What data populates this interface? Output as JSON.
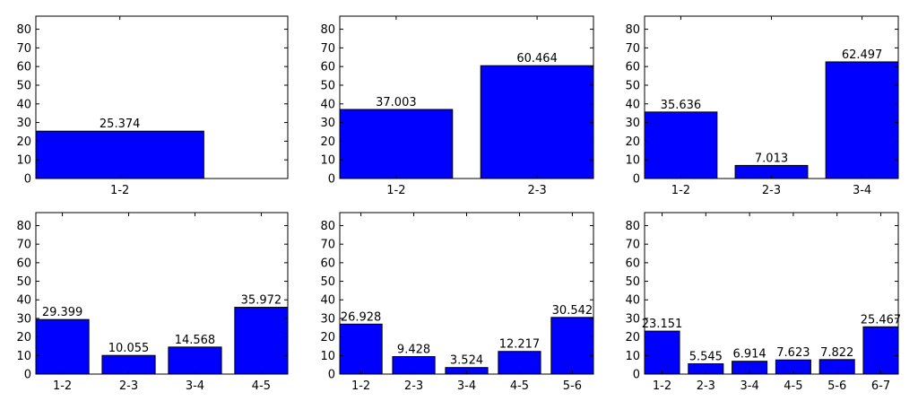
{
  "chart_data": [
    {
      "type": "bar",
      "categories": [
        "1-2"
      ],
      "values": [
        25.374
      ],
      "data_labels": [
        "25.374"
      ],
      "ylim": [
        0,
        87
      ],
      "yticks": [
        0,
        10,
        20,
        30,
        40,
        50,
        60,
        70,
        80
      ],
      "colors": {
        "bar": "#0000ff"
      },
      "grid": false
    },
    {
      "type": "bar",
      "categories": [
        "1-2",
        "2-3"
      ],
      "values": [
        37.003,
        60.464
      ],
      "data_labels": [
        "37.003",
        "60.464"
      ],
      "ylim": [
        0,
        87
      ],
      "yticks": [
        0,
        10,
        20,
        30,
        40,
        50,
        60,
        70,
        80
      ],
      "colors": {
        "bar": "#0000ff"
      },
      "grid": false
    },
    {
      "type": "bar",
      "categories": [
        "1-2",
        "2-3",
        "3-4"
      ],
      "values": [
        35.636,
        7.013,
        62.497
      ],
      "data_labels": [
        "35.636",
        "7.013",
        "62.497"
      ],
      "ylim": [
        0,
        87
      ],
      "yticks": [
        0,
        10,
        20,
        30,
        40,
        50,
        60,
        70,
        80
      ],
      "colors": {
        "bar": "#0000ff"
      },
      "grid": false
    },
    {
      "type": "bar",
      "categories": [
        "1-2",
        "2-3",
        "3-4",
        "4-5"
      ],
      "values": [
        29.399,
        10.055,
        14.568,
        35.972
      ],
      "data_labels": [
        "29.399",
        "10.055",
        "14.568",
        "35.972"
      ],
      "ylim": [
        0,
        87
      ],
      "yticks": [
        0,
        10,
        20,
        30,
        40,
        50,
        60,
        70,
        80
      ],
      "colors": {
        "bar": "#0000ff"
      },
      "grid": false
    },
    {
      "type": "bar",
      "categories": [
        "1-2",
        "2-3",
        "3-4",
        "4-5",
        "5-6"
      ],
      "values": [
        26.928,
        9.428,
        3.524,
        12.217,
        30.542
      ],
      "data_labels": [
        "26.928",
        "9.428",
        "3.524",
        "12.217",
        "30.542"
      ],
      "ylim": [
        0,
        87
      ],
      "yticks": [
        0,
        10,
        20,
        30,
        40,
        50,
        60,
        70,
        80
      ],
      "colors": {
        "bar": "#0000ff"
      },
      "grid": false
    },
    {
      "type": "bar",
      "categories": [
        "1-2",
        "2-3",
        "3-4",
        "4-5",
        "5-6",
        "6-7"
      ],
      "values": [
        23.151,
        5.545,
        6.914,
        7.623,
        7.822,
        25.467
      ],
      "data_labels": [
        "23.151",
        "5.545",
        "6.914",
        "7.623",
        "7.822",
        "25.467"
      ],
      "ylim": [
        0,
        87
      ],
      "yticks": [
        0,
        10,
        20,
        30,
        40,
        50,
        60,
        70,
        80
      ],
      "colors": {
        "bar": "#0000ff"
      },
      "grid": false
    }
  ]
}
